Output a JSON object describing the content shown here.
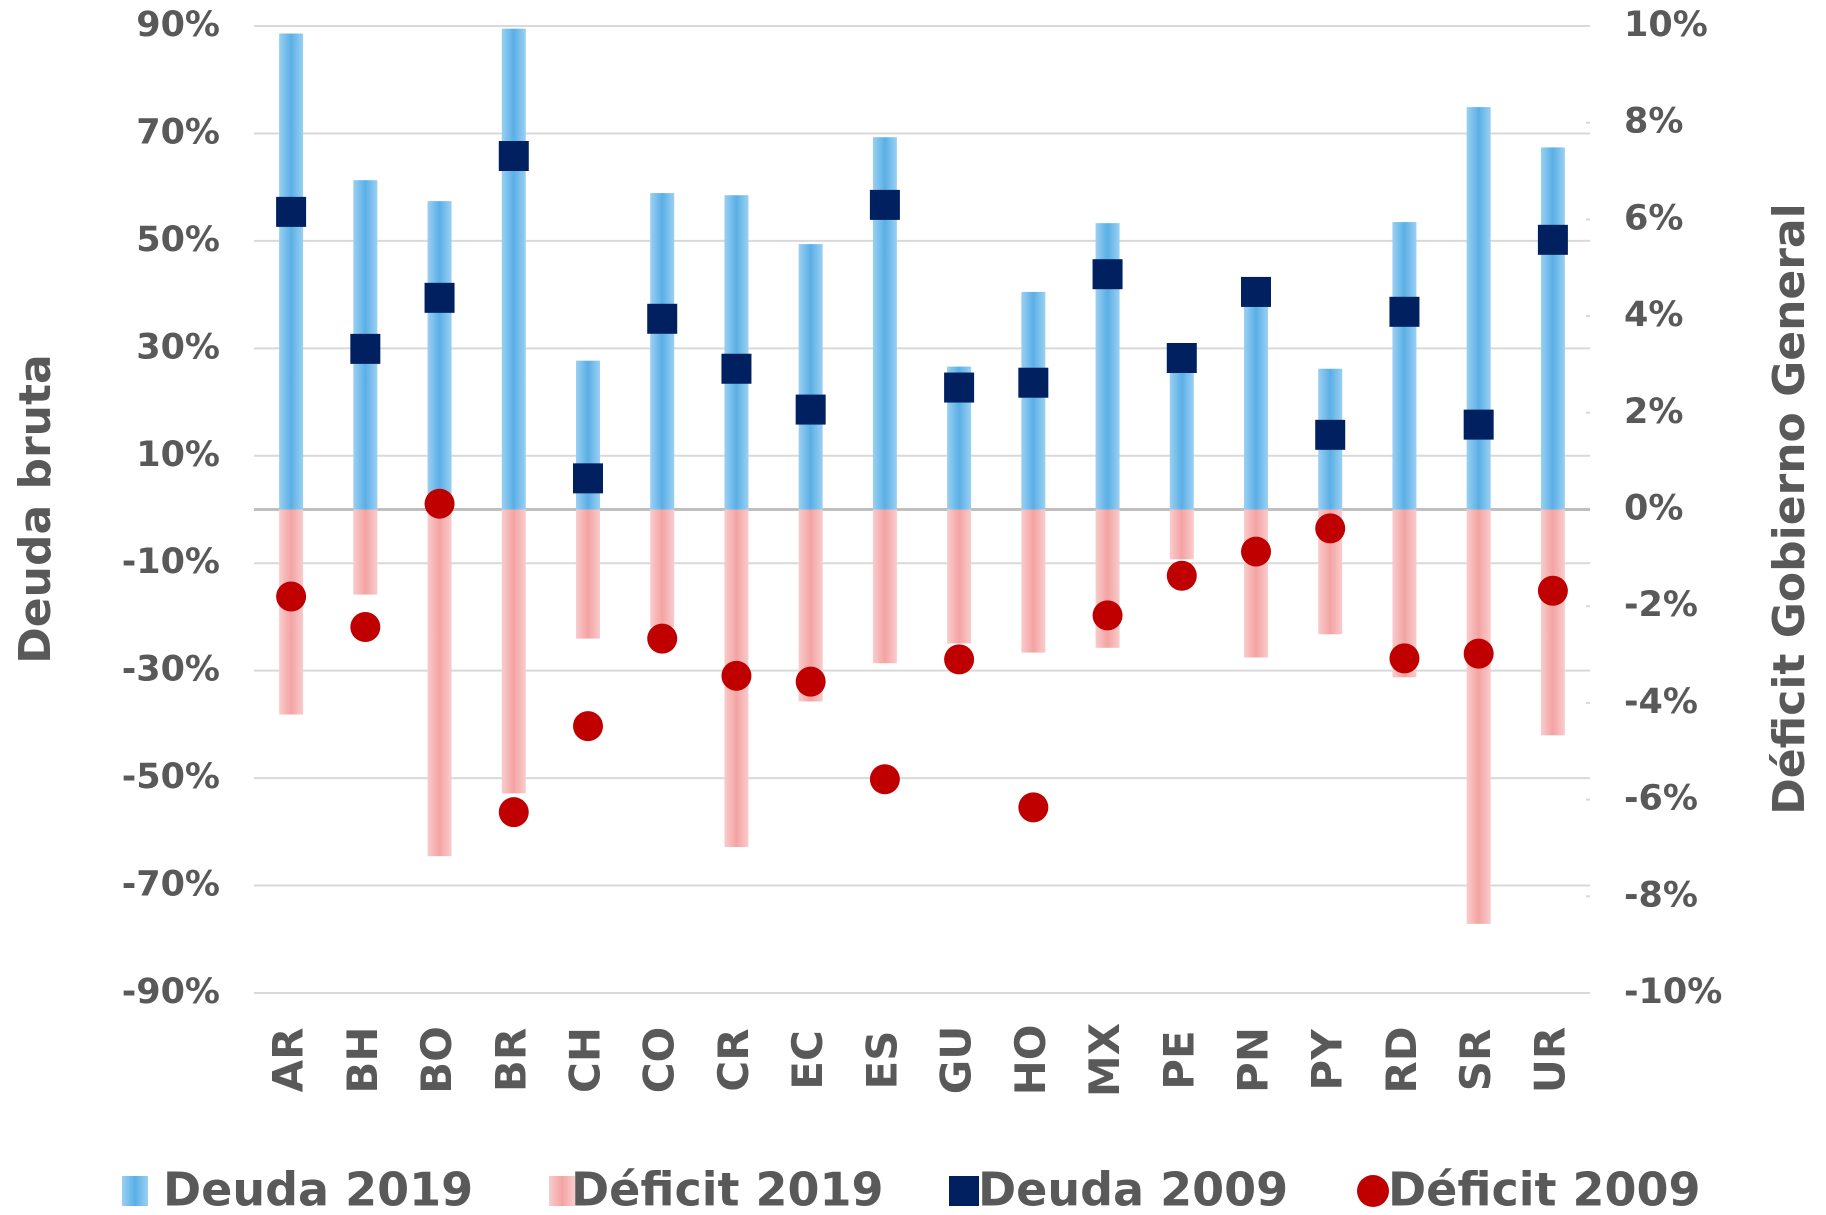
{
  "chart_data": {
    "type": "bar",
    "categories": [
      "AR",
      "BH",
      "BO",
      "BR",
      "CH",
      "CO",
      "CR",
      "EC",
      "ES",
      "GU",
      "HO",
      "MX",
      "PE",
      "PN",
      "PY",
      "RD",
      "SR",
      "UR"
    ],
    "ylabel": "Deuda bruta",
    "y2label": "Déficit Gobierno General",
    "ylim": [
      -90,
      90
    ],
    "yticks": [
      {
        "value": 90,
        "label": "90%"
      },
      {
        "value": 70,
        "label": "70%"
      },
      {
        "value": 50,
        "label": "50%"
      },
      {
        "value": 30,
        "label": "30%"
      },
      {
        "value": 10,
        "label": "10%"
      },
      {
        "value": -10,
        "label": "-10%"
      },
      {
        "value": -30,
        "label": "-30%"
      },
      {
        "value": -50,
        "label": "-50%"
      },
      {
        "value": -70,
        "label": "-70%"
      },
      {
        "value": -90,
        "label": "-90%"
      }
    ],
    "y2lim": [
      -10,
      10
    ],
    "y2ticks": [
      {
        "value": 10,
        "label": "10%"
      },
      {
        "value": 8,
        "label": "8%"
      },
      {
        "value": 6,
        "label": "6%"
      },
      {
        "value": 4,
        "label": "4%"
      },
      {
        "value": 2,
        "label": "2%"
      },
      {
        "value": 0,
        "label": "0%"
      },
      {
        "value": -2,
        "label": "-2%"
      },
      {
        "value": -4,
        "label": "-4%"
      },
      {
        "value": -6,
        "label": "-6%"
      },
      {
        "value": -8,
        "label": "-8%"
      },
      {
        "value": -10,
        "label": "-10%"
      }
    ],
    "grid": true,
    "legend": "bottom",
    "series": [
      {
        "name": "Deuda 2019",
        "type": "bar",
        "color": "#5aafe6",
        "axis": "y",
        "values": [
          88.6,
          61.3,
          57.4,
          89.5,
          27.7,
          58.9,
          58.5,
          49.4,
          69.3,
          26.6,
          40.5,
          53.3,
          28,
          40,
          26.2,
          53.5,
          74.9,
          67.4
        ]
      },
      {
        "name": "Déficit 2019",
        "type": "bar",
        "color": "#f4a3a3",
        "axis": "y2",
        "values": [
          -4.24,
          -1.76,
          -7.17,
          -5.87,
          -2.67,
          -2.43,
          -6.98,
          -3.97,
          -3.18,
          -2.77,
          -2.96,
          -2.86,
          -1.03,
          -3.06,
          -2.58,
          -3.47,
          -8.57,
          -4.67
        ]
      },
      {
        "name": "Deuda 2009",
        "type": "square",
        "color": "#002060",
        "axis": "y",
        "values": [
          55.4,
          29.9,
          39.4,
          65.8,
          5.8,
          35.5,
          26.2,
          18.6,
          56.7,
          22.7,
          23.6,
          43.8,
          28.2,
          40.5,
          13.9,
          36.8,
          15.8,
          50.2
        ]
      },
      {
        "name": "Déficit 2009",
        "type": "circle",
        "color": "#c00000",
        "axis": "y2",
        "values": [
          -1.8,
          -2.43,
          0.12,
          -6.26,
          -4.48,
          -2.67,
          -3.44,
          -3.56,
          -5.58,
          -3.1,
          -6.16,
          -2.19,
          -1.37,
          -0.87,
          -0.39,
          -3.08,
          -2.98,
          -1.68
        ]
      }
    ]
  }
}
